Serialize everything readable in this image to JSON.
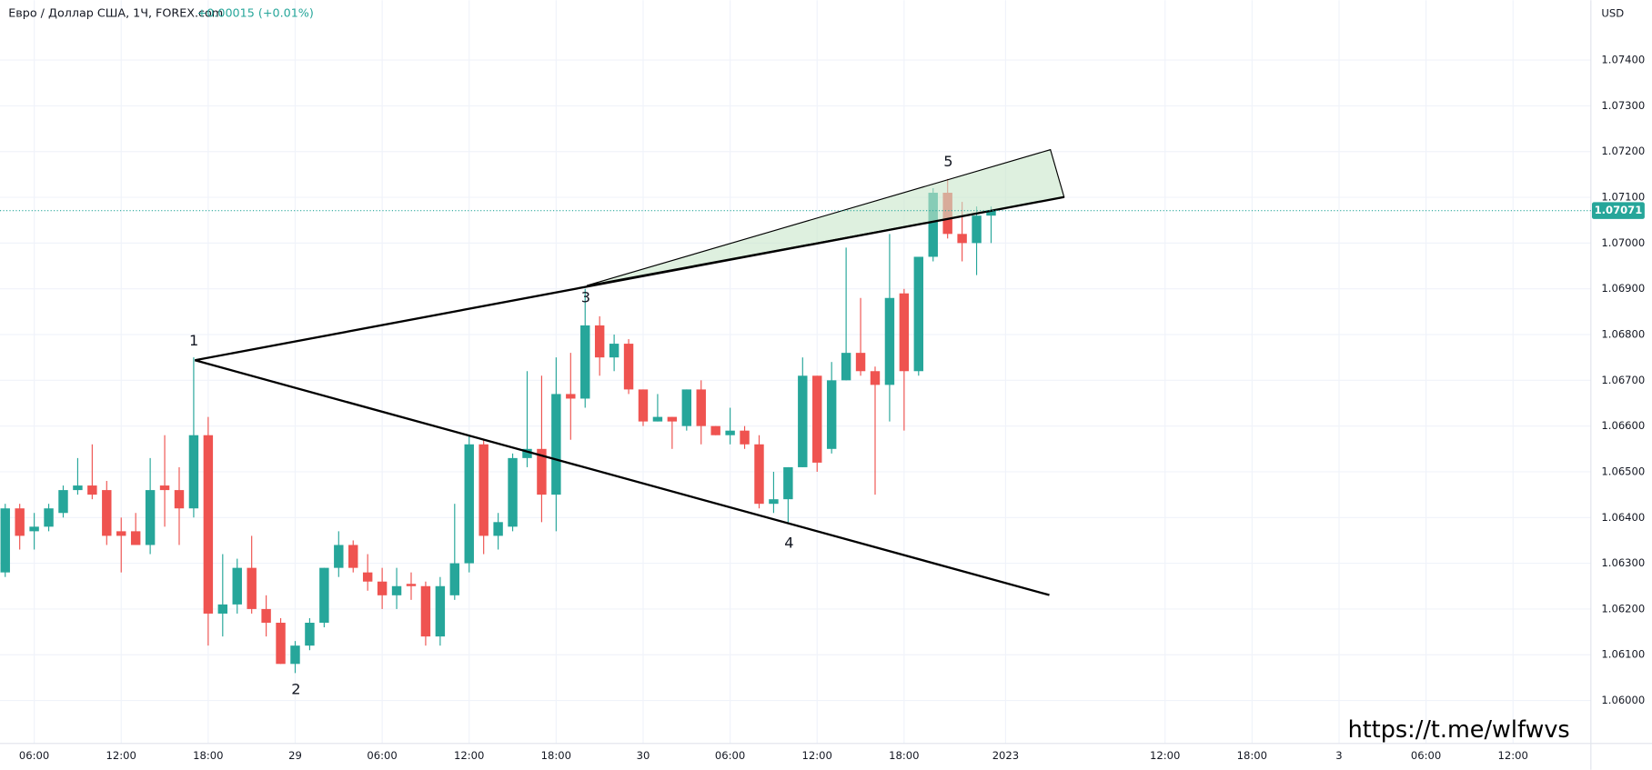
{
  "chart_data": {
    "type": "candlestick",
    "title": "Евро / Доллар США, 1Ч, FOREX.com",
    "change": "+0.00015 (+0.01%)",
    "currency": "USD",
    "watermark": "https://t.me/wlfwvs",
    "wave_labels": [
      "1",
      "2",
      "3",
      "4",
      "5"
    ],
    "up_color": "#26a69a",
    "down_color": "#ef5350",
    "last_price": 1.07071,
    "open": [
      1.0628,
      1.0642,
      1.0637,
      1.0638,
      1.0641,
      1.0646,
      1.0647,
      1.0646,
      1.0637,
      1.0637,
      1.0634,
      1.0647,
      1.0646,
      1.0642,
      1.0658,
      1.0619,
      1.0621,
      1.0629,
      1.062,
      1.0617,
      1.0608,
      1.0612,
      1.0617,
      1.0629,
      1.0634,
      1.0628,
      1.0626,
      1.0623,
      1.06255,
      1.0625,
      1.0614,
      1.0623,
      1.063,
      1.0656,
      1.0636,
      1.0638,
      1.0653,
      1.0655,
      1.0645,
      1.0667,
      1.0666,
      1.0682,
      1.0675,
      1.0678,
      1.0668,
      1.0661,
      1.0662,
      1.066,
      1.0668,
      1.066,
      1.0658,
      1.0659,
      1.0656,
      1.0643,
      1.0644,
      1.0651,
      1.0671,
      1.0655,
      1.067,
      1.0676,
      1.0672,
      1.0669,
      1.0689,
      1.0672,
      1.0697,
      1.0711,
      1.0702,
      1.07,
      1.0706
    ],
    "high": [
      1.0643,
      1.0643,
      1.0641,
      1.0643,
      1.0647,
      1.0653,
      1.0656,
      1.0648,
      1.064,
      1.0641,
      1.0653,
      1.0658,
      1.0651,
      1.0675,
      1.0662,
      1.0632,
      1.0631,
      1.0636,
      1.0623,
      1.0618,
      1.0613,
      1.0618,
      1.0629,
      1.0637,
      1.0635,
      1.0632,
      1.0629,
      1.0629,
      1.0628,
      1.0626,
      1.0627,
      1.0643,
      1.0658,
      1.0657,
      1.0641,
      1.0654,
      1.0672,
      1.0671,
      1.0675,
      1.0676,
      1.069,
      1.0684,
      1.068,
      1.0679,
      1.0668,
      1.0667,
      1.0662,
      1.0668,
      1.067,
      1.066,
      1.0664,
      1.066,
      1.0658,
      1.065,
      1.0651,
      1.0675,
      1.0671,
      1.0674,
      1.0699,
      1.0688,
      1.0673,
      1.0702,
      1.069,
      1.0697,
      1.0712,
      1.0714,
      1.0709,
      1.0708,
      1.0708
    ],
    "low": [
      1.0627,
      1.0633,
      1.0633,
      1.0637,
      1.064,
      1.0645,
      1.0644,
      1.0634,
      1.0628,
      1.0634,
      1.0632,
      1.0638,
      1.0634,
      1.064,
      1.0612,
      1.0614,
      1.0619,
      1.0619,
      1.0614,
      1.0608,
      1.0606,
      1.0611,
      1.0616,
      1.0627,
      1.0628,
      1.0624,
      1.062,
      1.062,
      1.0622,
      1.0612,
      1.0612,
      1.0622,
      1.0628,
      1.0632,
      1.0633,
      1.0637,
      1.0651,
      1.0639,
      1.0637,
      1.0657,
      1.0664,
      1.0671,
      1.0672,
      1.0667,
      1.066,
      1.0661,
      1.0655,
      1.0659,
      1.0656,
      1.0658,
      1.0656,
      1.0655,
      1.0642,
      1.0641,
      1.0639,
      1.0651,
      1.065,
      1.0654,
      1.067,
      1.0671,
      1.0645,
      1.0661,
      1.0659,
      1.0671,
      1.0696,
      1.0701,
      1.0696,
      1.0693,
      1.07
    ],
    "close": [
      1.0642,
      1.0636,
      1.0638,
      1.0642,
      1.0646,
      1.0647,
      1.0645,
      1.0636,
      1.0636,
      1.0634,
      1.0646,
      1.0646,
      1.0642,
      1.0658,
      1.0619,
      1.0621,
      1.0629,
      1.062,
      1.0617,
      1.0608,
      1.0612,
      1.0617,
      1.0629,
      1.0634,
      1.0629,
      1.0626,
      1.0623,
      1.0625,
      1.0625,
      1.0614,
      1.0625,
      1.063,
      1.0656,
      1.0636,
      1.0639,
      1.0653,
      1.0655,
      1.0645,
      1.0667,
      1.0666,
      1.0682,
      1.0675,
      1.0678,
      1.0668,
      1.0661,
      1.0662,
      1.0661,
      1.0668,
      1.066,
      1.0658,
      1.0659,
      1.0656,
      1.0643,
      1.0644,
      1.0651,
      1.0671,
      1.0652,
      1.067,
      1.0676,
      1.0672,
      1.0669,
      1.0688,
      1.0672,
      1.0697,
      1.0711,
      1.0702,
      1.07,
      1.0706,
      1.07071
    ],
    "ylim": [
      1.05906,
      1.07531
    ],
    "yticks": [
      {
        "value": 1.06,
        "label": "1.06000"
      },
      {
        "value": 1.061,
        "label": "1.06100"
      },
      {
        "value": 1.062,
        "label": "1.06200"
      },
      {
        "value": 1.063,
        "label": "1.06300"
      },
      {
        "value": 1.064,
        "label": "1.06400"
      },
      {
        "value": 1.065,
        "label": "1.06500"
      },
      {
        "value": 1.066,
        "label": "1.06600"
      },
      {
        "value": 1.067,
        "label": "1.06700"
      },
      {
        "value": 1.068,
        "label": "1.06800"
      },
      {
        "value": 1.069,
        "label": "1.06900"
      },
      {
        "value": 1.07,
        "label": "1.07000"
      },
      {
        "value": 1.071,
        "label": "1.07100"
      },
      {
        "value": 1.072,
        "label": "1.07200"
      },
      {
        "value": 1.073,
        "label": "1.07300"
      },
      {
        "value": 1.074,
        "label": "1.07400"
      }
    ],
    "xlim": [
      -0.36,
      109.37
    ],
    "xticks": [
      {
        "value": 2,
        "label": "06:00"
      },
      {
        "value": 8,
        "label": "12:00"
      },
      {
        "value": 14,
        "label": "18:00"
      },
      {
        "value": 20,
        "label": "29"
      },
      {
        "value": 26,
        "label": "06:00"
      },
      {
        "value": 32,
        "label": "12:00"
      },
      {
        "value": 38,
        "label": "18:00"
      },
      {
        "value": 44,
        "label": "30"
      },
      {
        "value": 50,
        "label": "06:00"
      },
      {
        "value": 56,
        "label": "12:00"
      },
      {
        "value": 62,
        "label": "18:00"
      },
      {
        "value": 69,
        "label": "2023"
      },
      {
        "value": 80,
        "label": "12:00"
      },
      {
        "value": 86,
        "label": "18:00"
      },
      {
        "value": 92,
        "label": "3"
      },
      {
        "value": 98,
        "label": "06:00"
      },
      {
        "value": 104,
        "label": "12:00"
      }
    ],
    "grid": true
  }
}
